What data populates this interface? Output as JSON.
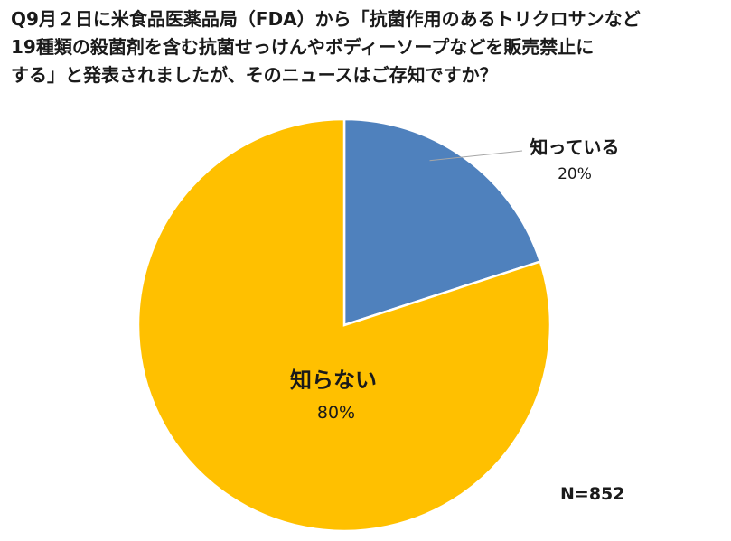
{
  "chart_data": {
    "type": "pie",
    "title_lines": [
      "Q9月２日に米食品医薬品局（FDA）から「抗菌作用のあるトリクロサンなど",
      "19種類の殺菌剤を含む抗菌せっけんやボディーソープなどを販売禁止に",
      "する」と発表されましたが、そのニュースはご存知ですか？"
    ],
    "slices": [
      {
        "label": "知っている",
        "value": 20,
        "value_label": "20%",
        "color": "#4F81BD"
      },
      {
        "label": "知らない",
        "value": 80,
        "value_label": "80%",
        "color": "#FFC000"
      }
    ],
    "start_angle_deg": 0,
    "direction": "clockwise",
    "legend": "none",
    "note": "N=852"
  }
}
